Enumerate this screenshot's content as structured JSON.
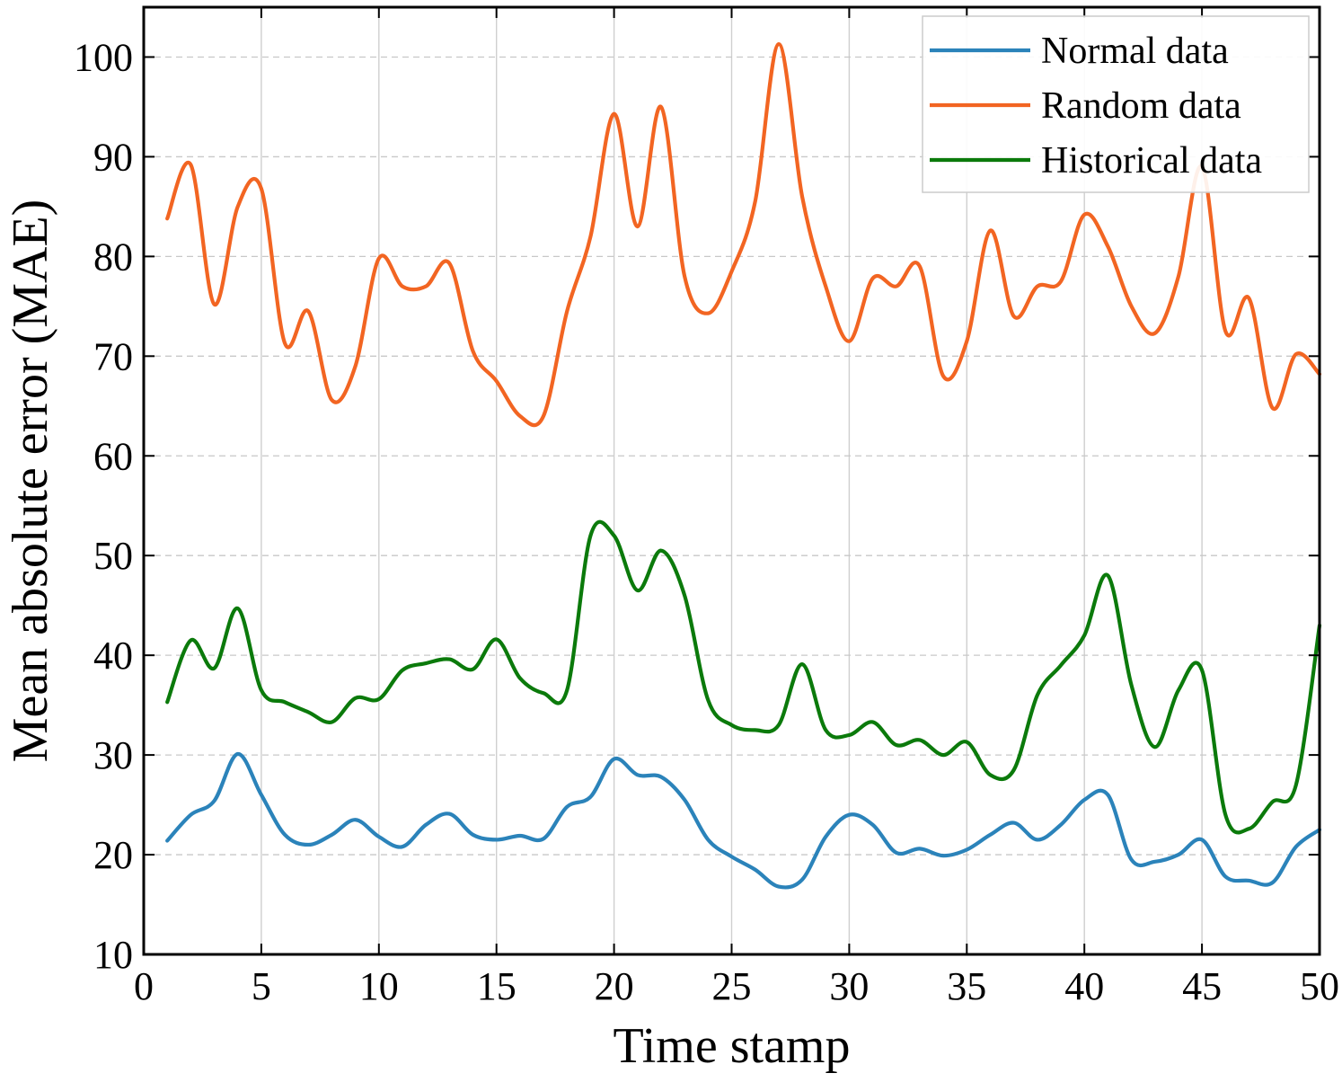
{
  "chart_data": {
    "type": "line",
    "title": "",
    "xlabel": "Time stamp",
    "ylabel": "Mean absolute error (MAE)",
    "xlim": [
      0,
      50
    ],
    "ylim": [
      10,
      105
    ],
    "xticks": [
      0,
      5,
      10,
      15,
      20,
      25,
      30,
      35,
      40,
      45,
      50
    ],
    "yticks": [
      10,
      20,
      30,
      40,
      50,
      60,
      70,
      80,
      90,
      100
    ],
    "grid": {
      "vertical": "solid",
      "horizontal": "dashed"
    },
    "legend_position": "top-right",
    "x": [
      1,
      2,
      3,
      4,
      5,
      6,
      7,
      8,
      9,
      10,
      11,
      12,
      13,
      14,
      15,
      16,
      17,
      18,
      19,
      20,
      21,
      22,
      23,
      24,
      25,
      26,
      27,
      28,
      29,
      30,
      31,
      32,
      33,
      34,
      35,
      36,
      37,
      38,
      39,
      40,
      41,
      42,
      43,
      44,
      45,
      46,
      47,
      48,
      49,
      50
    ],
    "series": [
      {
        "name": "Normal data",
        "color": "#2b83ba",
        "values": [
          21.4,
          24.0,
          25.4,
          30.1,
          26.0,
          22.0,
          21.0,
          22.0,
          23.5,
          21.8,
          20.8,
          23.0,
          24.1,
          22.0,
          21.5,
          21.9,
          21.6,
          24.8,
          25.8,
          29.6,
          28.0,
          27.8,
          25.5,
          21.5,
          19.8,
          18.5,
          16.8,
          17.5,
          21.8,
          24.0,
          23.0,
          20.2,
          20.6,
          19.9,
          20.5,
          22.0,
          23.2,
          21.5,
          23.0,
          25.5,
          26.0,
          19.5,
          19.3,
          20.0,
          21.5,
          17.8,
          17.4,
          17.2,
          20.8,
          22.5
        ]
      },
      {
        "name": "Random data",
        "color": "#f26522",
        "values": [
          83.8,
          89.2,
          75.2,
          85.0,
          86.8,
          71.3,
          74.5,
          65.6,
          69.0,
          79.8,
          77.0,
          77.0,
          79.3,
          70.5,
          67.5,
          64.0,
          64.0,
          74.5,
          82.0,
          94.3,
          83.0,
          95.0,
          78.0,
          74.3,
          78.5,
          85.5,
          101.3,
          86.0,
          77.0,
          71.5,
          77.8,
          77.0,
          79.0,
          68.0,
          71.5,
          82.6,
          74.0,
          77.0,
          77.5,
          84.2,
          81.0,
          75.0,
          72.3,
          78.0,
          89.0,
          72.5,
          75.8,
          64.8,
          70.2,
          68.2
        ]
      },
      {
        "name": "Historical data",
        "color": "#0b7a0b",
        "values": [
          35.3,
          41.5,
          38.7,
          44.7,
          36.5,
          35.3,
          34.3,
          33.3,
          35.7,
          35.6,
          38.5,
          39.2,
          39.6,
          38.6,
          41.6,
          37.7,
          36.2,
          36.5,
          52.0,
          52.0,
          46.5,
          50.5,
          46.0,
          35.5,
          33.0,
          32.5,
          33.0,
          39.1,
          32.5,
          32.0,
          33.3,
          31.0,
          31.5,
          30.0,
          31.3,
          28.0,
          28.5,
          36.0,
          39.0,
          42.0,
          48.0,
          37.0,
          30.8,
          36.5,
          38.5,
          24.0,
          22.6,
          25.3,
          27.0,
          43.0
        ]
      }
    ]
  }
}
